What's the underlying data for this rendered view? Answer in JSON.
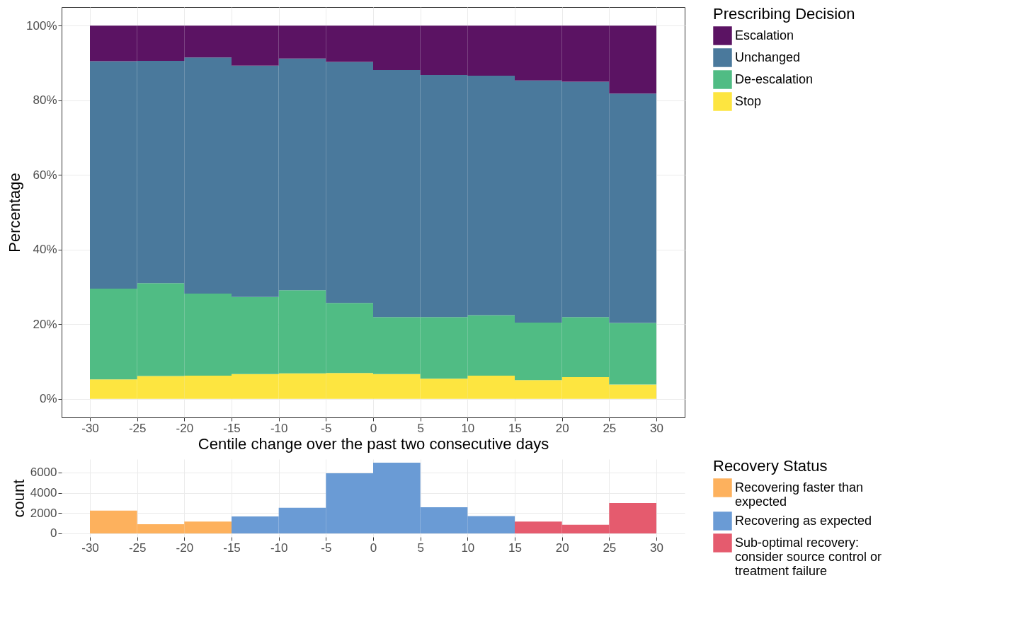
{
  "chart_data": [
    {
      "type": "bar",
      "stacked": true,
      "xlabel": "Centile change over the past two consecutive days",
      "ylabel": "Percentage",
      "legend_title": "Prescribing Decision",
      "legend": "right",
      "grid": true,
      "x": [
        -27.5,
        -22.5,
        -17.5,
        -12.5,
        -7.5,
        -2.5,
        2.5,
        7.5,
        12.5,
        17.5,
        22.5,
        27.5
      ],
      "series": [
        {
          "name": "Stop",
          "color": "#fde540",
          "values": [
            5.2,
            6.1,
            6.2,
            6.6,
            6.8,
            6.9,
            6.6,
            5.4,
            6.2,
            5.0,
            5.8,
            3.8
          ]
        },
        {
          "name": "De-escalation",
          "color": "#50bc84",
          "values": [
            24.3,
            24.9,
            22.0,
            20.7,
            22.3,
            18.8,
            15.3,
            16.5,
            16.2,
            15.4,
            16.1,
            16.5
          ]
        },
        {
          "name": "Unchanged",
          "color": "#4a799c",
          "values": [
            61.0,
            59.6,
            63.3,
            62.0,
            62.1,
            64.6,
            66.2,
            64.9,
            64.2,
            64.9,
            63.1,
            61.5
          ]
        },
        {
          "name": "Escalation",
          "color": "#5b1363",
          "values": [
            9.5,
            9.4,
            8.5,
            10.7,
            8.8,
            9.7,
            11.9,
            13.2,
            13.4,
            14.7,
            15.0,
            18.2
          ]
        }
      ],
      "xlim": [
        -33,
        33
      ],
      "xticks": [
        -30,
        -25,
        -20,
        -15,
        -10,
        -5,
        0,
        5,
        10,
        15,
        20,
        25,
        30
      ],
      "ylim": [
        -5,
        105
      ],
      "yticks": [
        {
          "value": 0,
          "label": "0%"
        },
        {
          "value": 20,
          "label": "20%"
        },
        {
          "value": 40,
          "label": "40%"
        },
        {
          "value": 60,
          "label": "60%"
        },
        {
          "value": 80,
          "label": "80%"
        },
        {
          "value": 100,
          "label": "100%"
        }
      ]
    },
    {
      "type": "histogram",
      "ylabel": "count",
      "legend_title": "Recovery Status",
      "legend": "right",
      "grid": true,
      "bins": [
        -30,
        -25,
        -20,
        -15,
        -10,
        -5,
        0,
        5,
        10,
        15,
        20,
        25,
        30
      ],
      "series": [
        {
          "name": "Recovering faster than expected",
          "color": "#fdb15d",
          "values": [
            2250,
            900,
            1170,
            null,
            null,
            null,
            null,
            null,
            null,
            null,
            null,
            null
          ]
        },
        {
          "name": "Recovering as expected",
          "color": "#6a9bd5",
          "values": [
            null,
            null,
            null,
            1680,
            2530,
            5920,
            6970,
            2570,
            1710,
            null,
            null,
            null
          ]
        },
        {
          "name": "Sub-optimal recovery: consider source control or treatment failure",
          "color": "#e55b6e",
          "values": [
            null,
            null,
            null,
            null,
            null,
            null,
            null,
            null,
            null,
            1170,
            860,
            3000
          ]
        }
      ],
      "xlim": [
        -33,
        33
      ],
      "xticks": [
        -30,
        -25,
        -20,
        -15,
        -10,
        -5,
        0,
        5,
        10,
        15,
        20,
        25,
        30
      ],
      "ylim": [
        -350,
        7320
      ],
      "yticks": [
        0,
        2000,
        4000,
        6000
      ]
    }
  ]
}
